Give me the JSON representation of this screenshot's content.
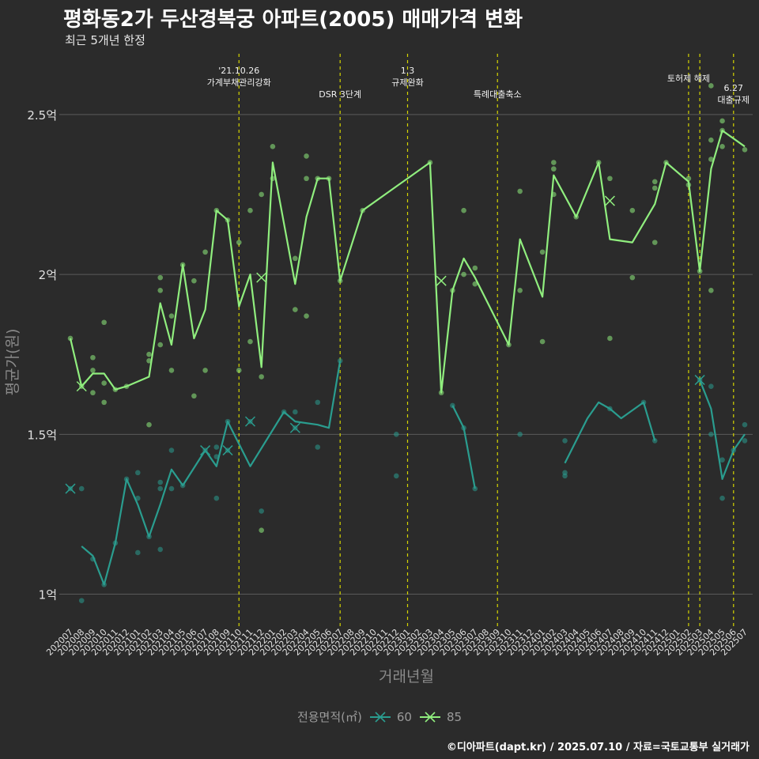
{
  "title": "평화동2가 두산경복궁 아파트(2005) 매매가격 변화",
  "subtitle": "최근 5개년 한정",
  "caption": "©디아파트(dapt.kr) / 2025.07.10 / 자료=국토교통부 실거래가",
  "legend": {
    "title": "전용면적(㎡)",
    "items": [
      {
        "label": "60",
        "color": "#2a9d8f"
      },
      {
        "label": "85",
        "color": "#90ee7e"
      }
    ]
  },
  "chart_data": {
    "type": "line",
    "xlabel": "거래년월",
    "ylabel": "평균가(원)",
    "ylim": [
      0.9,
      2.69
    ],
    "yticks": [
      {
        "value": 1.0,
        "label": "1억"
      },
      {
        "value": 1.5,
        "label": "1.5억"
      },
      {
        "value": 2.0,
        "label": "2억"
      },
      {
        "value": 2.5,
        "label": "2.5억"
      }
    ],
    "categories": [
      "202007",
      "202008",
      "202009",
      "202010",
      "202011",
      "202012",
      "202101",
      "202102",
      "202103",
      "202104",
      "202105",
      "202106",
      "202107",
      "202108",
      "202109",
      "202110",
      "202111",
      "202112",
      "202201",
      "202202",
      "202203",
      "202204",
      "202205",
      "202206",
      "202207",
      "202208",
      "202209",
      "202210",
      "202211",
      "202212",
      "202301",
      "202302",
      "202303",
      "202304",
      "202305",
      "202306",
      "202307",
      "202308",
      "202309",
      "202310",
      "202311",
      "202312",
      "202401",
      "202402",
      "202403",
      "202404",
      "202405",
      "202406",
      "202407",
      "202408",
      "202409",
      "202410",
      "202411",
      "202412",
      "202501",
      "202502",
      "202503",
      "202504",
      "202505",
      "202506",
      "202507"
    ],
    "annotations": [
      {
        "x": "202110",
        "lines": [
          "'21.10.26",
          "가계부채관리강화"
        ],
        "level": 0
      },
      {
        "x": "202207",
        "lines": [
          "DSR 3단계"
        ],
        "level": 2
      },
      {
        "x": "202301",
        "lines": [
          "1.3",
          "규제완화"
        ],
        "level": 0
      },
      {
        "x": "202309",
        "lines": [
          "특례대출축소"
        ],
        "level": 2
      },
      {
        "x": "202502",
        "lines": [
          "토허제 해제"
        ],
        "level": 1
      },
      {
        "x": "202503",
        "lines": [],
        "level": 1
      },
      {
        "x": "202506",
        "lines": [
          "6.27",
          "대출규제"
        ],
        "level": 3
      }
    ],
    "series": [
      {
        "name": "60",
        "color": "#2a9d8f",
        "line": [
          [
            "202008",
            1.15
          ],
          [
            "202009",
            1.12
          ],
          [
            "202010",
            1.03
          ],
          [
            "202011",
            1.16
          ],
          [
            "202012",
            1.36
          ],
          [
            "202101",
            1.28
          ],
          [
            "202102",
            1.18
          ],
          [
            "202103",
            1.28
          ],
          [
            "202104",
            1.39
          ],
          [
            "202105",
            1.34
          ],
          [
            "202107",
            1.45
          ],
          [
            "202108",
            1.4
          ],
          [
            "202109",
            1.54
          ],
          [
            "202111",
            1.4
          ],
          [
            "202202",
            1.57
          ],
          [
            "202203",
            1.54
          ],
          [
            "202205",
            1.53
          ],
          [
            "202206",
            1.52
          ],
          [
            "202207",
            1.73
          ],
          null,
          [
            "202305",
            1.59
          ],
          [
            "202306",
            1.52
          ],
          [
            "202307",
            1.33
          ],
          null,
          [
            "202403",
            1.41
          ],
          [
            "202405",
            1.55
          ],
          [
            "202406",
            1.6
          ],
          [
            "202407",
            1.58
          ],
          [
            "202408",
            1.55
          ],
          [
            "202410",
            1.6
          ],
          [
            "202411",
            1.48
          ],
          null,
          [
            "202503",
            1.67
          ],
          [
            "202504",
            1.58
          ],
          [
            "202505",
            1.36
          ],
          [
            "202506",
            1.45
          ],
          [
            "202507",
            1.5
          ]
        ],
        "points": [
          [
            "202007",
            1.33
          ],
          [
            "202008",
            1.33
          ],
          [
            "202008",
            0.98
          ],
          [
            "202009",
            1.11
          ],
          [
            "202010",
            1.03
          ],
          [
            "202011",
            1.16
          ],
          [
            "202012",
            1.36
          ],
          [
            "202101",
            1.3
          ],
          [
            "202101",
            1.38
          ],
          [
            "202101",
            1.13
          ],
          [
            "202102",
            1.18
          ],
          [
            "202103",
            1.33
          ],
          [
            "202103",
            1.35
          ],
          [
            "202103",
            1.14
          ],
          [
            "202104",
            1.45
          ],
          [
            "202104",
            1.33
          ],
          [
            "202105",
            1.34
          ],
          [
            "202107",
            1.45
          ],
          [
            "202108",
            1.3
          ],
          [
            "202108",
            1.46
          ],
          [
            "202108",
            1.43
          ],
          [
            "202109",
            1.54
          ],
          [
            "202109",
            1.45
          ],
          [
            "202111",
            1.54
          ],
          [
            "202112",
            1.26
          ],
          [
            "202202",
            1.57
          ],
          [
            "202203",
            1.57
          ],
          [
            "202203",
            1.52
          ],
          [
            "202205",
            1.6
          ],
          [
            "202205",
            1.46
          ],
          [
            "202207",
            1.73
          ],
          [
            "202212",
            1.5
          ],
          [
            "202212",
            1.37
          ],
          [
            "202305",
            1.59
          ],
          [
            "202306",
            1.52
          ],
          [
            "202307",
            1.33
          ],
          [
            "202311",
            1.5
          ],
          [
            "202403",
            1.48
          ],
          [
            "202403",
            1.38
          ],
          [
            "202403",
            1.37
          ],
          [
            "202407",
            1.58
          ],
          [
            "202410",
            1.6
          ],
          [
            "202411",
            1.48
          ],
          [
            "202503",
            1.67
          ],
          [
            "202504",
            1.65
          ],
          [
            "202504",
            1.5
          ],
          [
            "202505",
            1.42
          ],
          [
            "202505",
            1.3
          ],
          [
            "202506",
            1.45
          ],
          [
            "202507",
            1.53
          ],
          [
            "202507",
            1.48
          ]
        ],
        "crosses": [
          [
            "202007",
            1.33
          ],
          [
            "202107",
            1.45
          ],
          [
            "202109",
            1.45
          ],
          [
            "202111",
            1.54
          ],
          [
            "202203",
            1.52
          ],
          [
            "202503",
            1.67
          ]
        ]
      },
      {
        "name": "85",
        "color": "#90ee7e",
        "line": [
          [
            "202007",
            1.8
          ],
          [
            "202008",
            1.65
          ],
          [
            "202009",
            1.69
          ],
          [
            "202010",
            1.69
          ],
          [
            "202011",
            1.64
          ],
          [
            "202012",
            1.65
          ],
          [
            "202102",
            1.68
          ],
          [
            "202103",
            1.91
          ],
          [
            "202104",
            1.78
          ],
          [
            "202105",
            2.03
          ],
          [
            "202106",
            1.8
          ],
          [
            "202107",
            1.89
          ],
          [
            "202108",
            2.2
          ],
          [
            "202109",
            2.17
          ],
          [
            "202110",
            1.9
          ],
          [
            "202111",
            2.0
          ],
          [
            "202112",
            1.71
          ],
          [
            "202201",
            2.35
          ],
          [
            "202203",
            1.97
          ],
          [
            "202204",
            2.18
          ],
          [
            "202205",
            2.3
          ],
          [
            "202206",
            2.3
          ],
          [
            "202207",
            1.98
          ],
          [
            "202209",
            2.2
          ],
          [
            "202303",
            2.35
          ],
          [
            "202304",
            1.63
          ],
          [
            "202305",
            1.95
          ],
          [
            "202306",
            2.05
          ],
          [
            "202307",
            1.99
          ],
          [
            "202310",
            1.78
          ],
          [
            "202311",
            2.11
          ],
          [
            "202401",
            1.93
          ],
          [
            "202402",
            2.31
          ],
          [
            "202404",
            2.18
          ],
          [
            "202406",
            2.35
          ],
          [
            "202407",
            2.11
          ],
          [
            "202409",
            2.1
          ],
          [
            "202411",
            2.22
          ],
          [
            "202412",
            2.35
          ],
          [
            "202502",
            2.29
          ],
          [
            "202503",
            2.01
          ],
          [
            "202504",
            2.33
          ],
          [
            "202505",
            2.45
          ],
          [
            "202507",
            2.4
          ]
        ],
        "points": [
          [
            "202007",
            1.8
          ],
          [
            "202008",
            1.65
          ],
          [
            "202009",
            1.74
          ],
          [
            "202009",
            1.7
          ],
          [
            "202009",
            1.63
          ],
          [
            "202010",
            1.85
          ],
          [
            "202010",
            1.66
          ],
          [
            "202010",
            1.6
          ],
          [
            "202011",
            1.64
          ],
          [
            "202012",
            1.65
          ],
          [
            "202102",
            1.75
          ],
          [
            "202102",
            1.73
          ],
          [
            "202102",
            1.53
          ],
          [
            "202103",
            1.99
          ],
          [
            "202103",
            1.95
          ],
          [
            "202103",
            1.78
          ],
          [
            "202104",
            1.87
          ],
          [
            "202104",
            1.7
          ],
          [
            "202105",
            2.03
          ],
          [
            "202106",
            1.98
          ],
          [
            "202106",
            1.62
          ],
          [
            "202107",
            2.07
          ],
          [
            "202107",
            1.7
          ],
          [
            "202108",
            2.2
          ],
          [
            "202109",
            2.17
          ],
          [
            "202110",
            2.1
          ],
          [
            "202110",
            1.7
          ],
          [
            "202111",
            2.2
          ],
          [
            "202111",
            1.79
          ],
          [
            "202112",
            2.25
          ],
          [
            "202112",
            1.68
          ],
          [
            "202112",
            1.2
          ],
          [
            "202201",
            2.4
          ],
          [
            "202201",
            2.3
          ],
          [
            "202203",
            2.05
          ],
          [
            "202203",
            1.89
          ],
          [
            "202204",
            2.37
          ],
          [
            "202204",
            2.3
          ],
          [
            "202204",
            1.87
          ],
          [
            "202205",
            2.3
          ],
          [
            "202206",
            2.3
          ],
          [
            "202207",
            1.98
          ],
          [
            "202209",
            2.2
          ],
          [
            "202303",
            2.35
          ],
          [
            "202304",
            1.63
          ],
          [
            "202305",
            1.95
          ],
          [
            "202306",
            2.2
          ],
          [
            "202306",
            2.0
          ],
          [
            "202307",
            2.02
          ],
          [
            "202307",
            1.97
          ],
          [
            "202310",
            1.78
          ],
          [
            "202311",
            2.26
          ],
          [
            "202311",
            1.95
          ],
          [
            "202401",
            2.07
          ],
          [
            "202401",
            1.79
          ],
          [
            "202402",
            2.35
          ],
          [
            "202402",
            2.33
          ],
          [
            "202402",
            2.25
          ],
          [
            "202404",
            2.18
          ],
          [
            "202406",
            2.35
          ],
          [
            "202407",
            2.3
          ],
          [
            "202407",
            1.8
          ],
          [
            "202409",
            2.2
          ],
          [
            "202409",
            1.99
          ],
          [
            "202411",
            2.29
          ],
          [
            "202411",
            2.27
          ],
          [
            "202411",
            2.1
          ],
          [
            "202412",
            2.35
          ],
          [
            "202502",
            2.3
          ],
          [
            "202502",
            2.28
          ],
          [
            "202503",
            2.01
          ],
          [
            "202504",
            2.59
          ],
          [
            "202504",
            2.42
          ],
          [
            "202504",
            2.36
          ],
          [
            "202504",
            1.95
          ],
          [
            "202505",
            2.48
          ],
          [
            "202505",
            2.45
          ],
          [
            "202505",
            2.4
          ],
          [
            "202507",
            2.39
          ]
        ],
        "crosses": [
          [
            "202008",
            1.65
          ],
          [
            "202112",
            1.99
          ],
          [
            "202304",
            1.98
          ],
          [
            "202407",
            2.23
          ]
        ]
      }
    ]
  }
}
